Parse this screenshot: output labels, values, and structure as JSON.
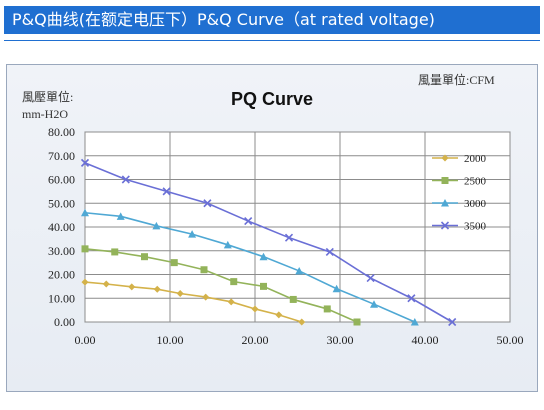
{
  "banner": {
    "text": "P&Q曲线(在额定电压下）P&Q Curve（at rated voltage)"
  },
  "chart_data": {
    "type": "line",
    "title": "PQ Curve",
    "ylabel_line1": "風壓單位:",
    "ylabel_line2": "mm-H2O",
    "xlabel_unit": "風量單位:CFM",
    "xlim": [
      0,
      50
    ],
    "ylim": [
      0,
      80
    ],
    "x_ticks": [
      "0.00",
      "10.00",
      "20.00",
      "30.00",
      "40.00",
      "50.00"
    ],
    "y_ticks": [
      "0.00",
      "10.00",
      "20.00",
      "30.00",
      "40.00",
      "50.00",
      "60.00",
      "70.00",
      "80.00"
    ],
    "grid": true,
    "legend_position": "right",
    "series": [
      {
        "name": "2000",
        "color": "#d4b24a",
        "marker": "diamond",
        "x": [
          0,
          2.5,
          5.5,
          8.5,
          11.2,
          14.2,
          17.2,
          20.0,
          22.8,
          25.5
        ],
        "y": [
          16.8,
          16.0,
          14.8,
          13.8,
          12.0,
          10.5,
          8.5,
          5.5,
          3.0,
          0
        ]
      },
      {
        "name": "2500",
        "color": "#93b35a",
        "marker": "square",
        "x": [
          0,
          3.5,
          7.0,
          10.5,
          14.0,
          17.5,
          21.0,
          24.5,
          28.5,
          32.0
        ],
        "y": [
          30.8,
          29.5,
          27.5,
          25.0,
          22.0,
          17.0,
          15.0,
          9.5,
          5.5,
          0
        ]
      },
      {
        "name": "3000",
        "color": "#4fa8d4",
        "marker": "triangle",
        "x": [
          0,
          4.2,
          8.4,
          12.6,
          16.8,
          21.0,
          25.2,
          29.6,
          34.0,
          38.8
        ],
        "y": [
          46.0,
          44.5,
          40.5,
          37.0,
          32.5,
          27.5,
          21.5,
          14.0,
          7.5,
          0
        ]
      },
      {
        "name": "3500",
        "color": "#6a6fd6",
        "marker": "x",
        "x": [
          0,
          4.8,
          9.6,
          14.4,
          19.2,
          24.0,
          28.8,
          33.6,
          38.4,
          43.2
        ],
        "y": [
          67.0,
          60.0,
          55.0,
          50.0,
          42.5,
          35.5,
          29.5,
          18.5,
          10.0,
          0
        ]
      }
    ]
  }
}
